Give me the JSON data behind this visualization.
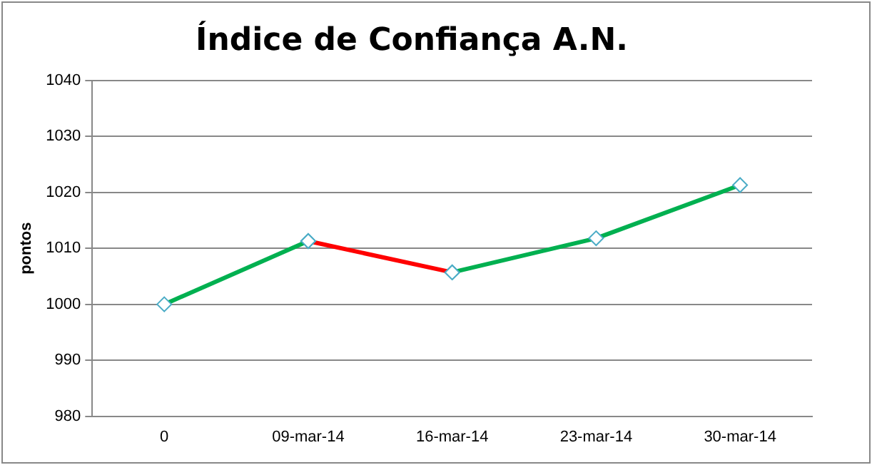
{
  "chart_data": {
    "type": "line",
    "title": "Índice de Confiança A.N.",
    "ylabel": "pontos",
    "categories": [
      "0",
      "09-mar-14",
      "16-mar-14",
      "23-mar-14",
      "30-mar-14"
    ],
    "series": [
      {
        "color": "#00b050",
        "values": [
          1000,
          1011.3,
          null,
          null,
          null
        ]
      },
      {
        "color": "#ff0000",
        "values": [
          null,
          1011.3,
          1005.7,
          null,
          null
        ]
      },
      {
        "color": "#00b050",
        "values": [
          null,
          null,
          1005.7,
          1011.8,
          1021.3
        ]
      }
    ],
    "ylim": [
      980,
      1040
    ],
    "yticks": [
      980,
      990,
      1000,
      1010,
      1020,
      1030,
      1040
    ],
    "grid": "y",
    "marker": "diamond",
    "legend": false
  }
}
